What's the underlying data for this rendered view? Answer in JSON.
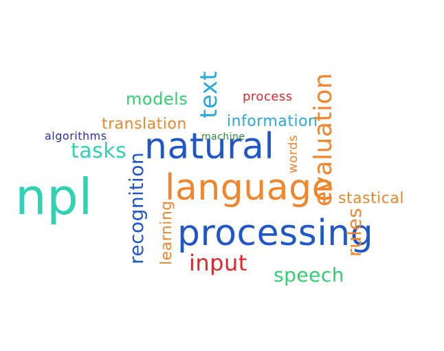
{
  "wordcloud": {
    "npl": "npl",
    "natural": "natural",
    "language": "language",
    "processing": "processing",
    "input": "input",
    "speech": "speech",
    "tasks": "tasks",
    "translation": "translation",
    "models": "models",
    "algorithms": "algorithms",
    "information": "information",
    "process": "process",
    "machine": "machine",
    "statical": "stastical",
    "text": "text",
    "evaluation": "evaluation",
    "words": "words",
    "recognition": "recognition",
    "learning": "learning",
    "rules": "rules"
  },
  "colors": {
    "green": "#2fd06d",
    "teal": "#2fd2b3",
    "blue": "#1f56c9",
    "orange": "#f2842a",
    "red": "#e0262b",
    "sky": "#29a8df",
    "navy": "#2d2ea8",
    "dark_green": "#2a8a3b"
  }
}
